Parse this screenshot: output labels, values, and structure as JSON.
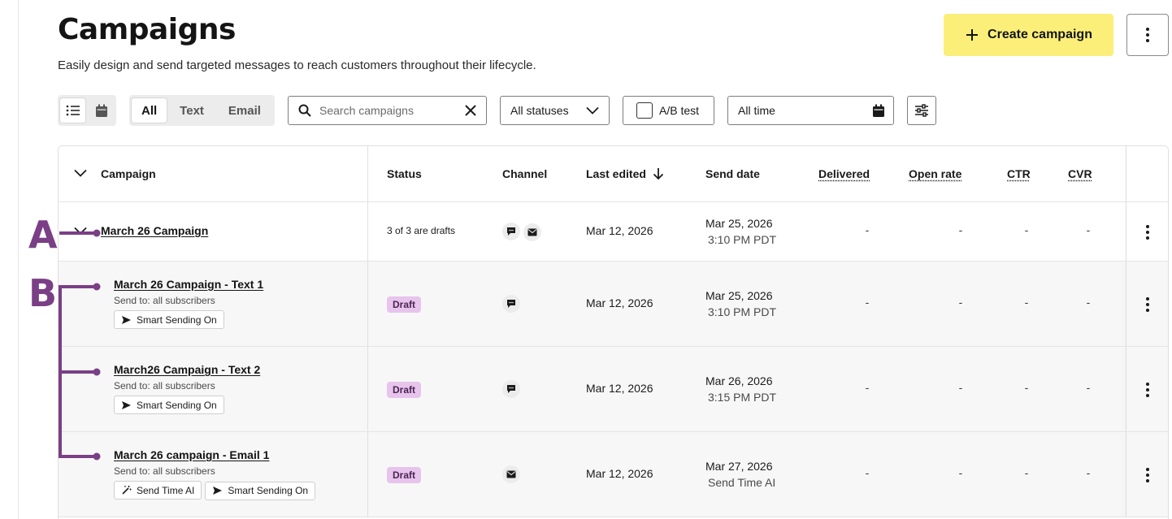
{
  "page": {
    "title": "Campaigns",
    "subtitle": "Easily design and send targeted messages to reach customers throughout their lifecycle."
  },
  "header_actions": {
    "create_label": "Create campaign",
    "more_icon": "kebab-icon"
  },
  "toolbar": {
    "view_modes": [
      "list-icon",
      "calendar-icon"
    ],
    "channel_tabs": [
      "All",
      "Text",
      "Email"
    ],
    "channel_selected": "All",
    "search_placeholder": "Search campaigns",
    "status_value": "All statuses",
    "ab_test_label": "A/B test",
    "date_value": "All time"
  },
  "table": {
    "columns": {
      "campaign": "Campaign",
      "status": "Status",
      "channel": "Channel",
      "last_edited": "Last edited",
      "send_date": "Send date",
      "delivered": "Delivered",
      "open_rate": "Open rate",
      "ctr": "CTR",
      "cvr": "CVR"
    },
    "group": {
      "name": "March 26 Campaign",
      "status": "3 of 3 are drafts",
      "last_edited": "Mar 12, 2026",
      "send_date": "Mar 25, 2026",
      "send_time": "3:10 PM PDT",
      "delivered": "-",
      "open_rate": "-",
      "ctr": "-",
      "cvr": "-"
    },
    "rows": [
      {
        "name": "March 26 Campaign - Text 1",
        "send_to": "Send to: all subscribers",
        "tags": [
          "Smart Sending On"
        ],
        "status": "Draft",
        "channel": "text",
        "last_edited": "Mar 12, 2026",
        "send_date": "Mar 25, 2026",
        "send_time": "3:10 PM PDT",
        "delivered": "-",
        "open_rate": "-",
        "ctr": "-",
        "cvr": "-"
      },
      {
        "name": "March26 Campaign - Text 2",
        "send_to": "Send to: all subscribers",
        "tags": [
          "Smart Sending On"
        ],
        "status": "Draft",
        "channel": "text",
        "last_edited": "Mar 12, 2026",
        "send_date": "Mar 26, 2026",
        "send_time": "3:15 PM PDT",
        "delivered": "-",
        "open_rate": "-",
        "ctr": "-",
        "cvr": "-"
      },
      {
        "name": "March 26 campaign - Email 1",
        "send_to": "Send to: all subscribers",
        "tags": [
          "Send Time AI",
          "Smart Sending On"
        ],
        "status": "Draft",
        "channel": "email",
        "last_edited": "Mar 12, 2026",
        "send_date": "Mar 27, 2026",
        "send_time": "Send Time AI",
        "delivered": "-",
        "open_rate": "-",
        "ctr": "-",
        "cvr": "-"
      }
    ]
  },
  "annotations": {
    "a": "A",
    "b": "B"
  },
  "colors": {
    "accent_yellow": "#fbef7a",
    "draft_badge": "#e7c4ec",
    "annotation_purple": "#7b3f86"
  }
}
